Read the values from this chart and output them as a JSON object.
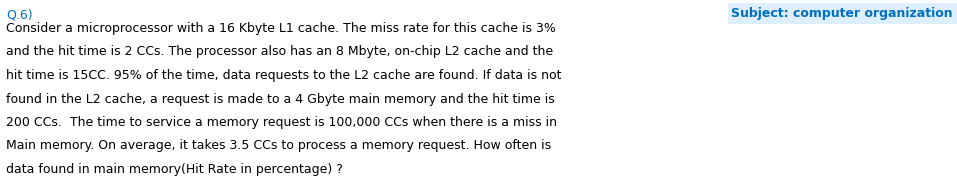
{
  "background_color": "#ffffff",
  "question_label": "Q.6)",
  "subject_label": "Subject: computer organization",
  "subject_color": "#0070C0",
  "subject_bg_color": "#DDEEFF",
  "question_color": "#0070C0",
  "body_color": "#000000",
  "lines": [
    "Consider a microprocessor with a 16 Kbyte L1 cache. The miss rate for this cache is 3%",
    "and the hit time is 2 CCs. The processor also has an 8 Mbyte, on-chip L2 cache and the",
    "hit time is 15CC. 95% of the time, data requests to the L2 cache are found. If data is not",
    "found in the L2 cache, a request is made to a 4 Gbyte main memory and the hit time is",
    "200 CCs.  The time to service a memory request is 100,000 CCs when there is a miss in",
    "Main memory. On average, it takes 3.5 CCs to process a memory request. How often is",
    "data found in main memory(Hit Rate in percentage) ?"
  ],
  "font_size_body": 9.0,
  "font_size_label": 9.0,
  "font_size_subject": 9.0,
  "fig_width": 9.57,
  "fig_height": 1.92,
  "dpi": 100
}
